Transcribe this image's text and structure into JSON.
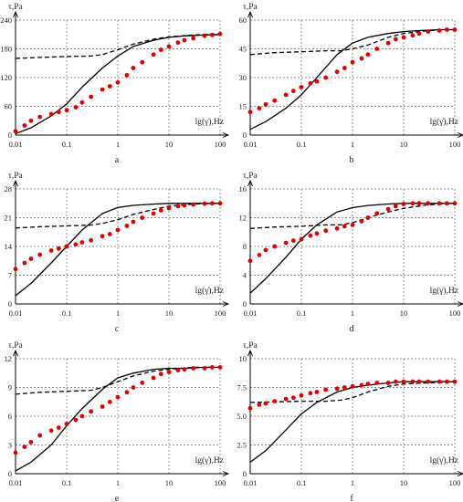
{
  "figure": {
    "background": "#ffffff"
  },
  "colors": {
    "solid": "#000000",
    "dashed": "#000000",
    "dots": "#e00000",
    "grid": "#666666",
    "axis": "#000000"
  },
  "chart_data": [
    {
      "type": "line",
      "label": "a",
      "ylabel": "τ,Pa",
      "xlabel": "lg(γ̇),Hz",
      "xscale": "log",
      "xlim": [
        0.01,
        100
      ],
      "ylim": [
        0,
        240
      ],
      "yticks": [
        0,
        60,
        120,
        180,
        240
      ],
      "xticks": [
        0.01,
        0.1,
        1,
        10,
        100
      ],
      "xticklabels": [
        "0.01",
        "0.1",
        "1",
        "10",
        "100"
      ],
      "grid": true,
      "series": [
        {
          "style": "solid",
          "x": [
            0.01,
            0.02,
            0.05,
            0.1,
            0.2,
            0.5,
            1,
            2,
            5,
            10,
            20,
            50,
            100
          ],
          "y": [
            3,
            15,
            40,
            65,
            100,
            140,
            165,
            185,
            198,
            204,
            207,
            209,
            210
          ]
        },
        {
          "style": "dashed",
          "x": [
            0.01,
            0.03,
            0.1,
            0.3,
            0.5,
            1,
            2,
            5,
            10,
            30,
            100
          ],
          "y": [
            160,
            162,
            164,
            165,
            168,
            178,
            190,
            200,
            205,
            209,
            211
          ]
        },
        {
          "style": "dots",
          "x": [
            0.01,
            0.015,
            0.02,
            0.03,
            0.05,
            0.07,
            0.1,
            0.15,
            0.2,
            0.3,
            0.5,
            0.7,
            1,
            1.5,
            2,
            3,
            5,
            7,
            10,
            15,
            20,
            30,
            50,
            70,
            100
          ],
          "y": [
            8,
            20,
            30,
            38,
            44,
            48,
            52,
            58,
            68,
            80,
            95,
            102,
            110,
            125,
            140,
            152,
            168,
            178,
            185,
            193,
            198,
            202,
            207,
            209,
            211
          ]
        }
      ]
    },
    {
      "type": "line",
      "label": "b",
      "ylabel": "τ,Pa",
      "xlabel": "lg(γ̇),Hz",
      "xscale": "log",
      "xlim": [
        0.01,
        100
      ],
      "ylim": [
        0,
        60
      ],
      "yticks": [
        0,
        15,
        30,
        45,
        60
      ],
      "xticks": [
        0.01,
        0.1,
        1,
        10,
        100
      ],
      "xticklabels": [
        "0.01",
        "0.1",
        "1",
        "10",
        "100"
      ],
      "grid": true,
      "series": [
        {
          "style": "solid",
          "x": [
            0.01,
            0.02,
            0.05,
            0.1,
            0.2,
            0.5,
            1,
            2,
            5,
            10,
            20,
            50,
            100
          ],
          "y": [
            3,
            7,
            14,
            21,
            30,
            42,
            48,
            51,
            53,
            54,
            54.5,
            55,
            55
          ]
        },
        {
          "style": "dashed",
          "x": [
            0.01,
            0.03,
            0.1,
            0.3,
            0.6,
            1,
            2,
            5,
            10,
            30,
            100
          ],
          "y": [
            42,
            43,
            43.5,
            44,
            44,
            45,
            47,
            51,
            53,
            54.5,
            55
          ]
        },
        {
          "style": "dots",
          "x": [
            0.01,
            0.015,
            0.02,
            0.03,
            0.05,
            0.07,
            0.1,
            0.15,
            0.2,
            0.3,
            0.5,
            0.7,
            1,
            1.5,
            2,
            3,
            5,
            7,
            10,
            15,
            20,
            30,
            50,
            70,
            100
          ],
          "y": [
            12,
            14,
            16,
            18,
            21,
            23,
            25,
            27,
            28,
            30,
            33,
            35,
            38,
            40,
            42,
            45,
            48,
            50,
            51,
            52,
            53,
            54,
            54.5,
            55,
            55
          ]
        }
      ]
    },
    {
      "type": "line",
      "label": "c",
      "ylabel": "τ,Pa",
      "xlabel": "lg(γ̇),Hz",
      "xscale": "log",
      "xlim": [
        0.01,
        100
      ],
      "ylim": [
        0,
        28
      ],
      "yticks": [
        0,
        7,
        14,
        21,
        28
      ],
      "xticks": [
        0.01,
        0.1,
        1,
        10,
        100
      ],
      "xticklabels": [
        "0.01",
        "0.1",
        "1",
        "10",
        "100"
      ],
      "grid": true,
      "series": [
        {
          "style": "solid",
          "x": [
            0.01,
            0.02,
            0.05,
            0.1,
            0.2,
            0.5,
            1,
            2,
            5,
            10,
            20,
            50,
            100
          ],
          "y": [
            2,
            5,
            10,
            14,
            18,
            22,
            23.5,
            24,
            24.3,
            24.5,
            24.5,
            24.5,
            24.5
          ]
        },
        {
          "style": "dashed",
          "x": [
            0.01,
            0.03,
            0.1,
            0.3,
            0.5,
            1,
            2,
            5,
            10,
            30,
            100
          ],
          "y": [
            18.5,
            18.8,
            19,
            19.2,
            19.6,
            20.5,
            21.8,
            23,
            23.8,
            24.3,
            24.5
          ]
        },
        {
          "style": "dots",
          "x": [
            0.01,
            0.015,
            0.02,
            0.03,
            0.05,
            0.07,
            0.1,
            0.15,
            0.2,
            0.3,
            0.5,
            0.7,
            1,
            1.5,
            2,
            3,
            5,
            7,
            10,
            15,
            20,
            30,
            50,
            70,
            100
          ],
          "y": [
            8.5,
            10,
            11,
            12,
            13,
            13.5,
            14,
            14.5,
            15,
            15.5,
            16.5,
            17,
            18,
            19,
            20,
            21,
            22,
            22.8,
            23.3,
            23.8,
            24,
            24.2,
            24.4,
            24.5,
            24.5
          ]
        }
      ]
    },
    {
      "type": "line",
      "label": "d",
      "ylabel": "τ,Pa",
      "xlabel": "lg(γ̇),Hz",
      "xscale": "log",
      "xlim": [
        0.01,
        100
      ],
      "ylim": [
        0,
        16
      ],
      "yticks": [
        0,
        4,
        8,
        12,
        16
      ],
      "xticks": [
        0.01,
        0.1,
        1,
        10,
        100
      ],
      "xticklabels": [
        "0.01",
        "0.1",
        "1",
        "10",
        "100"
      ],
      "grid": true,
      "series": [
        {
          "style": "solid",
          "x": [
            0.01,
            0.02,
            0.05,
            0.1,
            0.2,
            0.5,
            1,
            2,
            5,
            10,
            20,
            50,
            100
          ],
          "y": [
            1.5,
            3.5,
            6.5,
            9,
            11,
            12.8,
            13.4,
            13.7,
            13.9,
            14,
            14,
            14,
            14
          ]
        },
        {
          "style": "dashed",
          "x": [
            0.01,
            0.03,
            0.1,
            0.3,
            0.6,
            1,
            2,
            5,
            10,
            30,
            100
          ],
          "y": [
            10.5,
            10.7,
            10.8,
            11,
            11,
            11.3,
            12,
            12.8,
            13.3,
            13.8,
            14
          ]
        },
        {
          "style": "dots",
          "x": [
            0.01,
            0.015,
            0.02,
            0.03,
            0.05,
            0.07,
            0.1,
            0.15,
            0.2,
            0.3,
            0.5,
            0.7,
            1,
            1.5,
            2,
            3,
            5,
            7,
            10,
            15,
            20,
            30,
            50,
            70,
            100
          ],
          "y": [
            6,
            6.8,
            7.5,
            8,
            8.5,
            8.8,
            9,
            9.5,
            9.8,
            10.2,
            10.5,
            10.8,
            11,
            11.5,
            12,
            12.6,
            13.2,
            13.6,
            13.9,
            14,
            14,
            14,
            14,
            14,
            14
          ]
        }
      ]
    },
    {
      "type": "line",
      "label": "e",
      "ylabel": "τ,Pa",
      "xlabel": "lg(γ̇),Hz",
      "xscale": "log",
      "xlim": [
        0.01,
        100
      ],
      "ylim": [
        0,
        12
      ],
      "yticks": [
        0,
        3,
        6,
        9,
        12
      ],
      "xticks": [
        0.01,
        0.1,
        1,
        10,
        100
      ],
      "xticklabels": [
        "0.01",
        "0.1",
        "1",
        "10",
        "100"
      ],
      "grid": true,
      "series": [
        {
          "style": "solid",
          "x": [
            0.01,
            0.02,
            0.05,
            0.1,
            0.2,
            0.5,
            1,
            2,
            5,
            10,
            20,
            50,
            100
          ],
          "y": [
            0.3,
            1.2,
            3,
            5,
            6.8,
            8.8,
            10,
            10.5,
            10.9,
            11,
            11,
            11.1,
            11.1
          ]
        },
        {
          "style": "dashed",
          "x": [
            0.01,
            0.03,
            0.1,
            0.3,
            0.5,
            1,
            2,
            5,
            10,
            30,
            100
          ],
          "y": [
            8.3,
            8.5,
            8.6,
            8.7,
            9,
            9.6,
            10.2,
            10.7,
            10.9,
            11.1,
            11.1
          ]
        },
        {
          "style": "dots",
          "x": [
            0.01,
            0.015,
            0.02,
            0.03,
            0.05,
            0.07,
            0.1,
            0.15,
            0.2,
            0.3,
            0.5,
            0.7,
            1,
            1.5,
            2,
            3,
            5,
            7,
            10,
            15,
            20,
            30,
            50,
            70,
            100
          ],
          "y": [
            2.2,
            2.8,
            3.3,
            4,
            4.5,
            4.8,
            5.2,
            5.6,
            6,
            6.5,
            7,
            7.5,
            8,
            8.5,
            9,
            9.5,
            10,
            10.4,
            10.6,
            10.8,
            10.9,
            11,
            11,
            11.1,
            11.1
          ]
        }
      ]
    },
    {
      "type": "line",
      "label": "f",
      "ylabel": "τ,Pa",
      "xlabel": "lg(γ̇),Hz",
      "xscale": "log",
      "xlim": [
        0.01,
        100
      ],
      "ylim": [
        0,
        10
      ],
      "yticks": [
        0,
        2.5,
        5.0,
        7.5,
        10
      ],
      "yticklabels": [
        "0",
        "2.5",
        "5.0",
        "7.5",
        "10"
      ],
      "xticks": [
        0.01,
        0.1,
        1,
        10,
        100
      ],
      "xticklabels": [
        "0.01",
        "0.1",
        "1",
        "10",
        "100"
      ],
      "grid": true,
      "series": [
        {
          "style": "solid",
          "x": [
            0.01,
            0.02,
            0.05,
            0.1,
            0.2,
            0.5,
            1,
            2,
            5,
            10,
            20,
            50,
            100
          ],
          "y": [
            1,
            2,
            3.8,
            5.2,
            6.2,
            7.1,
            7.5,
            7.7,
            7.9,
            8,
            8,
            8,
            8
          ]
        },
        {
          "style": "dashed",
          "x": [
            0.01,
            0.03,
            0.1,
            0.3,
            0.6,
            1,
            2,
            5,
            10,
            30,
            100
          ],
          "y": [
            6.2,
            6.25,
            6.3,
            6.3,
            6.4,
            6.6,
            7.1,
            7.6,
            7.8,
            7.9,
            8
          ]
        },
        {
          "style": "dots",
          "x": [
            0.01,
            0.015,
            0.02,
            0.03,
            0.05,
            0.07,
            0.1,
            0.15,
            0.2,
            0.3,
            0.5,
            0.7,
            1,
            1.5,
            2,
            3,
            5,
            7,
            10,
            15,
            20,
            30,
            50,
            70,
            100
          ],
          "y": [
            5.7,
            6,
            6.1,
            6.3,
            6.5,
            6.6,
            6.8,
            7,
            7.1,
            7.3,
            7.4,
            7.5,
            7.6,
            7.7,
            7.8,
            7.9,
            7.9,
            8,
            8,
            8,
            8,
            8,
            8,
            8,
            8
          ]
        }
      ]
    }
  ]
}
